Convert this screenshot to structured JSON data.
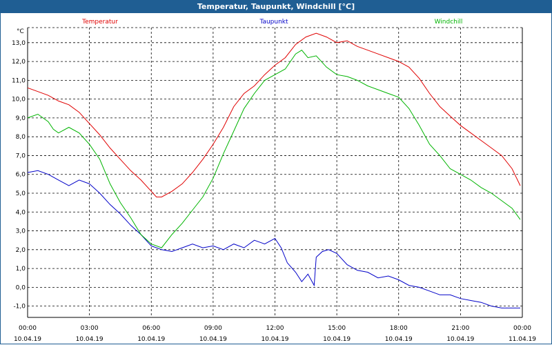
{
  "chart_data": {
    "type": "line",
    "title": "Temperatur, Taupunkt, Windchill [°C]",
    "ylabel": "°C",
    "ylim": [
      -1.6,
      13.8
    ],
    "xlim_hours": [
      0,
      24
    ],
    "y_ticks": [
      "13,0",
      "12,0",
      "11,0",
      "10,0",
      "9,0",
      "8,0",
      "7,0",
      "6,0",
      "5,0",
      "4,0",
      "3,0",
      "2,0",
      "1,0",
      "0,0",
      "-1,0"
    ],
    "y_tick_values": [
      13,
      12,
      11,
      10,
      9,
      8,
      7,
      6,
      5,
      4,
      3,
      2,
      1,
      0,
      -1
    ],
    "x_ticks": [
      {
        "time": "00:00",
        "date": "10.04.19"
      },
      {
        "time": "03:00",
        "date": "10.04.19"
      },
      {
        "time": "06:00",
        "date": "10.04.19"
      },
      {
        "time": "09:00",
        "date": "10.04.19"
      },
      {
        "time": "12:00",
        "date": "10.04.19"
      },
      {
        "time": "15:00",
        "date": "10.04.19"
      },
      {
        "time": "18:00",
        "date": "10.04.19"
      },
      {
        "time": "21:00",
        "date": "10.04.19"
      },
      {
        "time": "00:00",
        "date": "11.04.19"
      }
    ],
    "grid": true,
    "series": [
      {
        "name": "Temperatur",
        "color": "#e00000",
        "x": [
          0,
          0.5,
          1,
          1.5,
          2,
          2.5,
          3,
          3.5,
          4,
          4.5,
          5,
          5.5,
          6,
          6.25,
          6.5,
          7,
          7.5,
          8,
          8.5,
          9,
          9.5,
          10,
          10.5,
          11,
          11.5,
          12,
          12.5,
          13,
          13.5,
          14,
          14.5,
          15,
          15.5,
          16,
          16.5,
          17,
          17.5,
          18,
          18.5,
          19,
          19.5,
          20,
          20.5,
          21,
          21.5,
          22,
          22.5,
          23,
          23.5,
          23.9
        ],
        "values": [
          10.6,
          10.4,
          10.2,
          9.9,
          9.7,
          9.3,
          8.7,
          8.1,
          7.4,
          6.8,
          6.2,
          5.7,
          5.1,
          4.8,
          4.8,
          5.1,
          5.5,
          6.1,
          6.8,
          7.6,
          8.5,
          9.6,
          10.3,
          10.7,
          11.3,
          11.8,
          12.2,
          12.9,
          13.3,
          13.5,
          13.3,
          13.0,
          13.1,
          12.8,
          12.6,
          12.4,
          12.2,
          12.0,
          11.7,
          11.1,
          10.3,
          9.6,
          9.1,
          8.6,
          8.2,
          7.8,
          7.4,
          7.0,
          6.3,
          5.4
        ]
      },
      {
        "name": "Taupunkt",
        "color": "#0000c8",
        "x": [
          0,
          0.5,
          1,
          1.5,
          2,
          2.5,
          3,
          3.5,
          4,
          4.5,
          5,
          5.5,
          6,
          6.5,
          7,
          7.5,
          8,
          8.5,
          9,
          9.5,
          10,
          10.5,
          11,
          11.5,
          12,
          12.3,
          12.6,
          13,
          13.3,
          13.6,
          13.9,
          14,
          14.3,
          14.6,
          15,
          15.5,
          16,
          16.5,
          17,
          17.5,
          18,
          18.5,
          19,
          19.5,
          20,
          20.5,
          21,
          21.5,
          22,
          22.5,
          23,
          23.5,
          23.9
        ],
        "values": [
          6.1,
          6.2,
          6.0,
          5.7,
          5.4,
          5.7,
          5.5,
          5.0,
          4.4,
          3.9,
          3.3,
          2.8,
          2.2,
          2.0,
          1.9,
          2.1,
          2.3,
          2.1,
          2.2,
          2.0,
          2.3,
          2.1,
          2.5,
          2.3,
          2.6,
          2.1,
          1.3,
          0.8,
          0.3,
          0.7,
          0.1,
          1.6,
          1.9,
          2.0,
          1.8,
          1.2,
          0.9,
          0.8,
          0.5,
          0.6,
          0.4,
          0.1,
          0.0,
          -0.2,
          -0.4,
          -0.4,
          -0.6,
          -0.7,
          -0.8,
          -1.0,
          -1.1,
          -1.1,
          -1.1
        ]
      },
      {
        "name": "Windchill",
        "color": "#00b400",
        "x": [
          0,
          0.5,
          1,
          1.25,
          1.5,
          2,
          2.5,
          3,
          3.5,
          4,
          4.5,
          5,
          5.5,
          6,
          6.5,
          7,
          7.5,
          8,
          8.5,
          9,
          9.5,
          10,
          10.5,
          11,
          11.5,
          12,
          12.5,
          13,
          13.3,
          13.6,
          14,
          14.5,
          15,
          15.5,
          16,
          16.5,
          17,
          17.5,
          18,
          18.5,
          19,
          19.5,
          20,
          20.5,
          21,
          21.5,
          22,
          22.5,
          23,
          23.5,
          23.9
        ],
        "values": [
          9.0,
          9.2,
          8.8,
          8.4,
          8.2,
          8.5,
          8.2,
          7.6,
          6.8,
          5.5,
          4.5,
          3.7,
          2.8,
          2.3,
          2.1,
          2.8,
          3.4,
          4.1,
          4.8,
          5.8,
          7.1,
          8.3,
          9.5,
          10.3,
          11.0,
          11.3,
          11.6,
          12.4,
          12.6,
          12.2,
          12.3,
          11.7,
          11.3,
          11.2,
          11.0,
          10.7,
          10.5,
          10.3,
          10.1,
          9.5,
          8.6,
          7.6,
          7.0,
          6.3,
          6.0,
          5.7,
          5.3,
          5.0,
          4.6,
          4.2,
          3.6
        ]
      }
    ]
  }
}
